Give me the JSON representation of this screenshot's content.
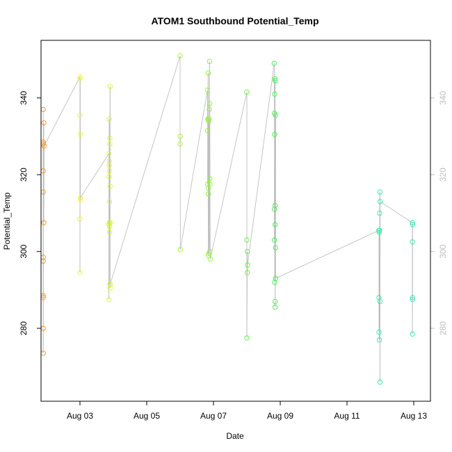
{
  "chart_data": {
    "type": "scatter",
    "title": "ATOM1 Southbound Potential_Temp",
    "xlabel": "Date",
    "ylabel": "Potential_Temp",
    "xlim": [
      "2024-08-01T20:00",
      "2024-08-13T12:00"
    ],
    "ylim": [
      261,
      355
    ],
    "x_ticks": [
      "Aug 03",
      "Aug 05",
      "Aug 07",
      "Aug 09",
      "Aug 11",
      "Aug 13"
    ],
    "y_ticks": [
      280,
      300,
      320,
      340
    ],
    "right_axis": true,
    "line_color": "#bebebe",
    "grid": false,
    "segments": [
      {
        "color": "#f59a33",
        "points": [
          [
            "2024-08-01T21:36",
            337
          ],
          [
            "2024-08-01T21:36",
            297.5
          ],
          [
            "2024-08-01T21:36",
            288
          ],
          [
            "2024-08-01T21:36",
            280
          ],
          [
            "2024-08-01T21:36",
            273.5
          ],
          [
            "2024-08-01T21:36",
            298.5
          ],
          [
            "2024-08-01T21:36",
            315.5
          ],
          [
            "2024-08-01T21:36",
            288.5
          ],
          [
            "2024-08-01T21:36",
            328.5
          ],
          [
            "2024-08-01T21:36",
            328
          ],
          [
            "2024-08-01T21:36",
            321
          ],
          [
            "2024-08-01T22:00",
            333.5
          ],
          [
            "2024-08-01T22:00",
            307.5
          ],
          [
            "2024-08-01T22:15",
            327.5
          ]
        ]
      },
      {
        "color": "#eff14a",
        "points": [
          [
            "2024-08-03T00:00",
            345.5
          ],
          [
            "2024-08-03T00:00",
            335.5
          ],
          [
            "2024-08-03T00:00",
            308.5
          ],
          [
            "2024-08-03T00:00",
            294.5
          ],
          [
            "2024-08-03T00:10",
            345
          ],
          [
            "2024-08-03T00:15",
            313.5
          ],
          [
            "2024-08-03T00:15",
            330.5
          ],
          [
            "2024-08-03T00:15",
            314
          ]
        ]
      },
      {
        "color": "#ddf53f",
        "points": [
          [
            "2024-08-03T20:50",
            325.5
          ],
          [
            "2024-08-03T20:50",
            319.5
          ],
          [
            "2024-08-03T20:50",
            287.5
          ],
          [
            "2024-08-03T20:50",
            307
          ],
          [
            "2024-08-03T21:00",
            322.5
          ],
          [
            "2024-08-03T21:00",
            334.5
          ],
          [
            "2024-08-03T21:05",
            321
          ],
          [
            "2024-08-03T21:10",
            323.5
          ],
          [
            "2024-08-03T21:10",
            307.5
          ],
          [
            "2024-08-03T21:15",
            313
          ],
          [
            "2024-08-03T21:20",
            305
          ],
          [
            "2024-08-03T21:20",
            306.5
          ],
          [
            "2024-08-03T21:25",
            291.5
          ],
          [
            "2024-08-03T21:30",
            328
          ],
          [
            "2024-08-03T21:30",
            329.5
          ],
          [
            "2024-08-03T21:40",
            343
          ],
          [
            "2024-08-03T21:40",
            317
          ],
          [
            "2024-08-03T21:40",
            307.5
          ],
          [
            "2024-08-03T21:40",
            290.5
          ],
          [
            "2024-08-03T21:45",
            291.5
          ]
        ]
      },
      {
        "color": "#a9f53a",
        "points": [
          [
            "2024-08-06T00:00",
            351
          ],
          [
            "2024-08-06T00:00",
            328
          ],
          [
            "2024-08-06T00:05",
            330
          ],
          [
            "2024-08-06T00:10",
            300.5
          ]
        ]
      },
      {
        "color": "#92f53a",
        "points": [
          [
            "2024-08-06T19:40",
            342
          ],
          [
            "2024-08-06T19:50",
            331.5
          ],
          [
            "2024-08-06T19:50",
            317.5
          ],
          [
            "2024-08-06T20:00",
            334.5
          ],
          [
            "2024-08-06T20:10",
            346.5
          ],
          [
            "2024-08-06T20:10",
            316.5
          ],
          [
            "2024-08-06T20:20",
            299
          ],
          [
            "2024-08-06T20:20",
            315
          ],
          [
            "2024-08-06T20:30",
            334
          ],
          [
            "2024-08-06T20:40",
            334.5
          ],
          [
            "2024-08-06T20:40",
            299.5
          ],
          [
            "2024-08-06T21:00",
            337
          ],
          [
            "2024-08-06T21:10",
            349.5
          ],
          [
            "2024-08-06T21:20",
            300
          ],
          [
            "2024-08-06T21:20",
            319
          ],
          [
            "2024-08-06T21:20",
            338.5
          ],
          [
            "2024-08-06T21:30",
            317.5
          ],
          [
            "2024-08-06T21:40",
            298
          ]
        ]
      },
      {
        "color": "#6cf047",
        "points": [
          [
            "2024-08-08T00:00",
            341.5
          ],
          [
            "2024-08-08T00:00",
            303
          ],
          [
            "2024-08-08T00:00",
            277.5
          ],
          [
            "2024-08-08T00:20",
            300
          ],
          [
            "2024-08-08T00:20",
            294.5
          ],
          [
            "2024-08-08T00:30",
            296.5
          ]
        ]
      },
      {
        "color": "#4af05a",
        "points": [
          [
            "2024-08-08T19:40",
            349
          ],
          [
            "2024-08-08T19:50",
            336
          ],
          [
            "2024-08-08T19:50",
            303
          ],
          [
            "2024-08-08T19:50",
            311
          ],
          [
            "2024-08-08T20:00",
            330.5
          ],
          [
            "2024-08-08T20:00",
            292
          ],
          [
            "2024-08-08T20:00",
            341
          ],
          [
            "2024-08-08T20:10",
            345
          ],
          [
            "2024-08-08T20:20",
            344.5
          ],
          [
            "2024-08-08T20:20",
            312
          ],
          [
            "2024-08-08T20:20",
            307
          ],
          [
            "2024-08-08T20:20",
            287
          ],
          [
            "2024-08-08T20:20",
            285.5
          ],
          [
            "2024-08-08T20:40",
            335.5
          ],
          [
            "2024-08-08T20:40",
            301
          ],
          [
            "2024-08-08T20:40",
            293
          ]
        ]
      },
      {
        "color": "#2ef0a5",
        "points": [
          [
            "2024-08-11T23:00",
            305.5
          ],
          [
            "2024-08-11T23:00",
            279
          ],
          [
            "2024-08-11T23:00",
            288
          ],
          [
            "2024-08-11T23:10",
            305
          ],
          [
            "2024-08-11T23:20",
            305.5
          ],
          [
            "2024-08-11T23:20",
            277
          ],
          [
            "2024-08-11T23:30",
            310
          ],
          [
            "2024-08-11T23:40",
            315.5
          ],
          [
            "2024-08-11T23:40",
            287
          ],
          [
            "2024-08-11T23:40",
            266
          ],
          [
            "2024-08-11T23:50",
            313
          ]
        ]
      },
      {
        "color": "#33eabc",
        "points": [
          [
            "2024-08-12T23:00",
            307.5
          ],
          [
            "2024-08-12T23:00",
            287.5
          ],
          [
            "2024-08-12T23:00",
            302.5
          ],
          [
            "2024-08-12T23:00",
            278.5
          ],
          [
            "2024-08-12T23:10",
            288
          ],
          [
            "2024-08-12T23:10",
            307
          ]
        ]
      }
    ]
  }
}
